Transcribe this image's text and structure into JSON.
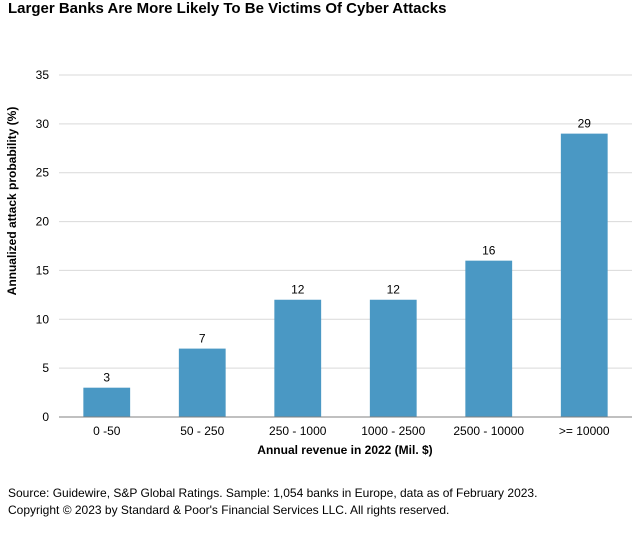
{
  "chart_data": {
    "type": "bar",
    "title": "Larger Banks Are More Likely To Be Victims Of Cyber Attacks",
    "xlabel": "Annual revenue in 2022 (Mil. $)",
    "ylabel": "Annualized attack probability (%)",
    "categories": [
      "0 -50",
      "50 - 250",
      "250 - 1000",
      "1000 - 2500",
      "2500 - 10000",
      ">= 10000"
    ],
    "values": [
      3,
      7,
      12,
      12,
      16,
      29
    ],
    "value_labels": [
      "3",
      "7",
      "12",
      "12",
      "16",
      "29"
    ],
    "ylim": [
      0,
      35
    ],
    "yticks": [
      0,
      5,
      10,
      15,
      20,
      25,
      30,
      35
    ],
    "ytick_labels": [
      "0",
      "5",
      "10",
      "15",
      "20",
      "25",
      "30",
      "35"
    ],
    "grid": true,
    "legend": "none",
    "bar_color": "#4a98c4",
    "grid_color": "#d9d9d9"
  },
  "footer": {
    "source": "Source: Guidewire, S&P Global Ratings. Sample: 1,054 banks in Europe, data as of February 2023.",
    "copyright": "Copyright © 2023 by Standard & Poor's Financial Services LLC. All rights reserved."
  }
}
